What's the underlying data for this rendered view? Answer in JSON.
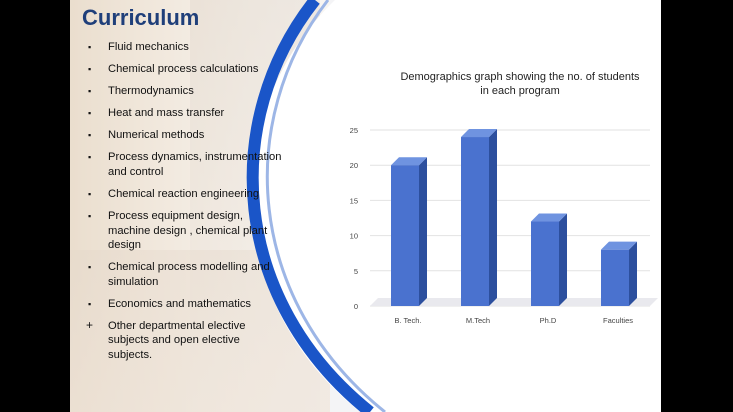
{
  "slide": {
    "title": "Curriculum",
    "items": [
      {
        "marker": "▪",
        "text": "Fluid mechanics"
      },
      {
        "marker": "▪",
        "text": "Chemical process calculations"
      },
      {
        "marker": "▪",
        "text": "Thermodynamics"
      },
      {
        "marker": "▪",
        "text": "Heat and mass transfer"
      },
      {
        "marker": "▪",
        "text": "Numerical methods"
      },
      {
        "marker": "▪",
        "text": "Process dynamics, instrumentation and control"
      },
      {
        "marker": "▪",
        "text": "Chemical reaction engineering"
      },
      {
        "marker": "▪",
        "text": "Process equipment design, machine design , chemical plant design"
      },
      {
        "marker": "▪",
        "text": "Chemical process modelling and simulation"
      },
      {
        "marker": "▪",
        "text": "Economics and mathematics"
      },
      {
        "marker": "+",
        "text": "Other departmental elective subjects and open elective subjects."
      }
    ]
  },
  "colors": {
    "title": "#1f3f7a",
    "bar_front": "#4a72cf",
    "bar_side": "#2c4f9e",
    "bar_top": "#6f93e0",
    "curve": "#1a55c8"
  },
  "chart_data": {
    "type": "bar",
    "title": "Demographics graph showing the no. of students in each program",
    "categories": [
      "B. Tech.",
      "M.Tech",
      "Ph.D",
      "Faculties"
    ],
    "values": [
      20,
      24,
      12,
      8
    ],
    "yticks": [
      "0",
      "5",
      "10",
      "15",
      "20",
      "25"
    ],
    "ylim": [
      0,
      25
    ],
    "grid": true,
    "style": "3d-column"
  }
}
